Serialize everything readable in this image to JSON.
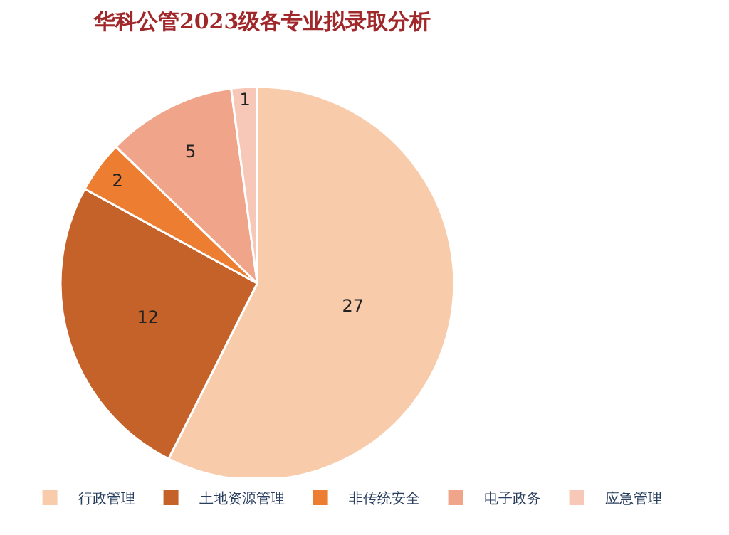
{
  "chart_data": {
    "type": "pie",
    "title": "华科公管2023级各专业拟录取分析",
    "categories": [
      "行政管理",
      "土地资源管理",
      "非传统安全",
      "电子政务",
      "应急管理"
    ],
    "values": [
      27,
      12,
      2,
      5,
      1
    ],
    "colors": [
      "#f8cbab",
      "#c5622a",
      "#ed7d31",
      "#f0a58a",
      "#f7c8b8"
    ],
    "data_labels": true,
    "legend": "bottom"
  }
}
